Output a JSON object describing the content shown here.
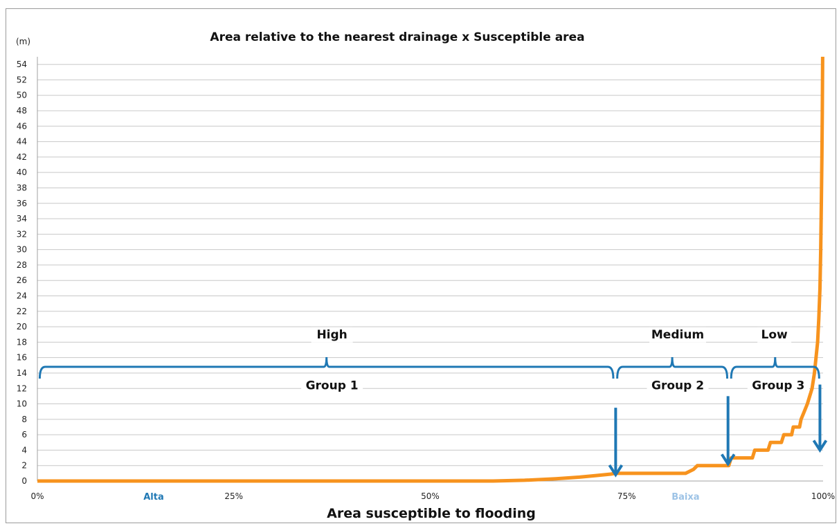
{
  "chart_data": {
    "type": "line",
    "title": "Area relative to the nearest drainage x Susceptible area",
    "xlabel": "Area susceptible to flooding",
    "ylabel": "(m)",
    "xlim": [
      0,
      100
    ],
    "ylim": [
      0,
      55
    ],
    "yticks": [
      0,
      2,
      4,
      6,
      8,
      10,
      12,
      14,
      16,
      18,
      20,
      22,
      24,
      26,
      28,
      30,
      32,
      34,
      36,
      38,
      40,
      42,
      44,
      46,
      48,
      50,
      52,
      54
    ],
    "xticks": [
      {
        "value": 0,
        "label": "0%"
      },
      {
        "value": 25,
        "label": "25%"
      },
      {
        "value": 50,
        "label": "50%"
      },
      {
        "value": 75,
        "label": "75%"
      },
      {
        "value": 100,
        "label": "100%"
      }
    ],
    "grid": true,
    "series": [
      {
        "color": "#F7931E",
        "points": [
          [
            0,
            0
          ],
          [
            58,
            0
          ],
          [
            62,
            0.1
          ],
          [
            66,
            0.3
          ],
          [
            69,
            0.5
          ],
          [
            71,
            0.7
          ],
          [
            73,
            0.9
          ],
          [
            73.5,
            1
          ],
          [
            82.5,
            1
          ],
          [
            83.5,
            1.5
          ],
          [
            84,
            2
          ],
          [
            88,
            2
          ],
          [
            88.3,
            3
          ],
          [
            91,
            3
          ],
          [
            91.3,
            4
          ],
          [
            93,
            4
          ],
          [
            93.3,
            5
          ],
          [
            94.7,
            5
          ],
          [
            95,
            6
          ],
          [
            96,
            6
          ],
          [
            96.2,
            7
          ],
          [
            97,
            7
          ],
          [
            97.2,
            8
          ],
          [
            97.6,
            9
          ],
          [
            98,
            10
          ],
          [
            98.3,
            11
          ],
          [
            98.6,
            12
          ],
          [
            98.9,
            14
          ],
          [
            99.1,
            16
          ],
          [
            99.3,
            18
          ],
          [
            99.45,
            21
          ],
          [
            99.6,
            25
          ],
          [
            99.7,
            30
          ],
          [
            99.78,
            36
          ],
          [
            99.85,
            42
          ],
          [
            99.9,
            48
          ],
          [
            99.95,
            55
          ]
        ]
      }
    ],
    "annotations": {
      "class_labels": [
        {
          "text": "High",
          "x": 37.5,
          "y": 18.5
        },
        {
          "text": "Medium",
          "x": 81.5,
          "y": 18.5
        },
        {
          "text": "Low",
          "x": 93.8,
          "y": 18.5
        }
      ],
      "group_labels": [
        {
          "text": "Group 1",
          "x": 37.5,
          "y": 12
        },
        {
          "text": "Group 2",
          "x": 81.5,
          "y": 12
        },
        {
          "text": "Group 3",
          "x": 94.3,
          "y": 12
        }
      ],
      "braces": [
        {
          "from": 0.3,
          "to": 73.3,
          "y": 14.8
        },
        {
          "from": 73.8,
          "to": 87.8,
          "y": 14.8
        },
        {
          "from": 88.3,
          "to": 99.5,
          "y": 14.8
        }
      ],
      "arrows": [
        {
          "x": 73.6,
          "from": 9.5,
          "to": 0.8
        },
        {
          "x": 87.9,
          "from": 11,
          "to": 2.2
        },
        {
          "x": 99.6,
          "from": 12.5,
          "to": 4
        }
      ],
      "axis_notes": [
        {
          "text": "Alta",
          "x": 14.8,
          "color": "#1F78B4"
        },
        {
          "text": "Baixa",
          "x": 82.5,
          "color": "#9DC3E6"
        }
      ],
      "brace_color": "#1F78B4"
    }
  }
}
